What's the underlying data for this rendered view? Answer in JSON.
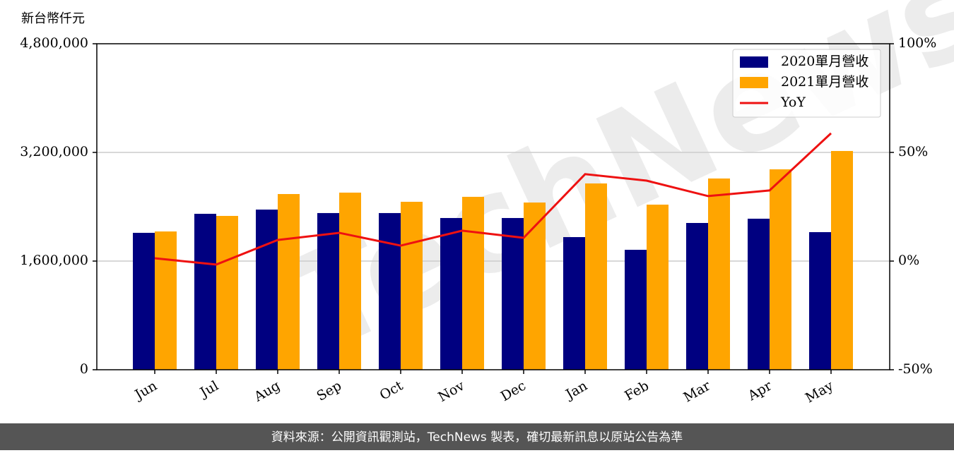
{
  "chart_data": {
    "type": "bar_line",
    "y_label": "新台幣仟元",
    "watermark": "TechNews",
    "footer": "資料來源：公開資訊觀測站，TechNews 製表，確切最新訊息以原站公告為準",
    "categories": [
      "Jun",
      "Jul",
      "Aug",
      "Sep",
      "Oct",
      "Nov",
      "Dec",
      "Jan",
      "Feb",
      "Mar",
      "Apr",
      "May"
    ],
    "series": [
      {
        "name": "2020單月營收",
        "color": "#000080",
        "kind": "bar",
        "values": [
          2016000,
          2296000,
          2358000,
          2307000,
          2307000,
          2234000,
          2234000,
          1953000,
          1766000,
          2161000,
          2224000,
          2026000
        ]
      },
      {
        "name": "2021單月營收",
        "color": "#ffa500",
        "kind": "bar",
        "values": [
          2036000,
          2265000,
          2587000,
          2608000,
          2473000,
          2546000,
          2462000,
          2743000,
          2431000,
          2816000,
          2951000,
          3221000
        ]
      },
      {
        "name": "YoY",
        "color": "#ee1111",
        "kind": "line",
        "axis": "y2",
        "values": [
          1.3,
          -1.6,
          9.7,
          13.0,
          7.1,
          14.0,
          10.7,
          40.0,
          37.0,
          29.9,
          32.5,
          58.8
        ]
      }
    ],
    "ylim": [
      0,
      4800000
    ],
    "yticks": [
      0,
      {
        "value": 1600000,
        "label": "1,600,000"
      },
      {
        "value": 3200000,
        "label": "3,200,000"
      },
      {
        "value": 4800000,
        "label": "4,800,000"
      }
    ],
    "y2lim": [
      -50,
      100
    ],
    "y2ticks": [
      {
        "value": -50,
        "label": "-50%"
      },
      {
        "value": 0,
        "label": "0%"
      },
      {
        "value": 50,
        "label": "50%"
      },
      {
        "value": 100,
        "label": "100%"
      }
    ],
    "grid": true,
    "legend": "upper right"
  }
}
